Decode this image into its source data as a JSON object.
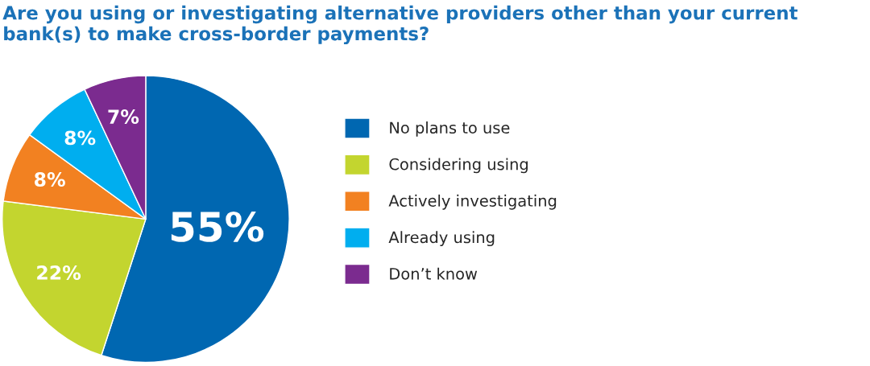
{
  "chart_data": {
    "type": "pie",
    "title": "Are you using or investigating alternative providers other than your current bank(s) to make cross-border payments?",
    "categories": [
      "No plans to use",
      "Considering using",
      "Actively investigating",
      "Already using",
      "Don’t know"
    ],
    "values": [
      55,
      22,
      8,
      8,
      7
    ],
    "colors": [
      "#0067b1",
      "#c3d52f",
      "#f28121",
      "#00aeef",
      "#7b2b8f"
    ],
    "value_labels": [
      "55%",
      "22%",
      "8%",
      "8%",
      "7%"
    ],
    "legend": "right"
  }
}
